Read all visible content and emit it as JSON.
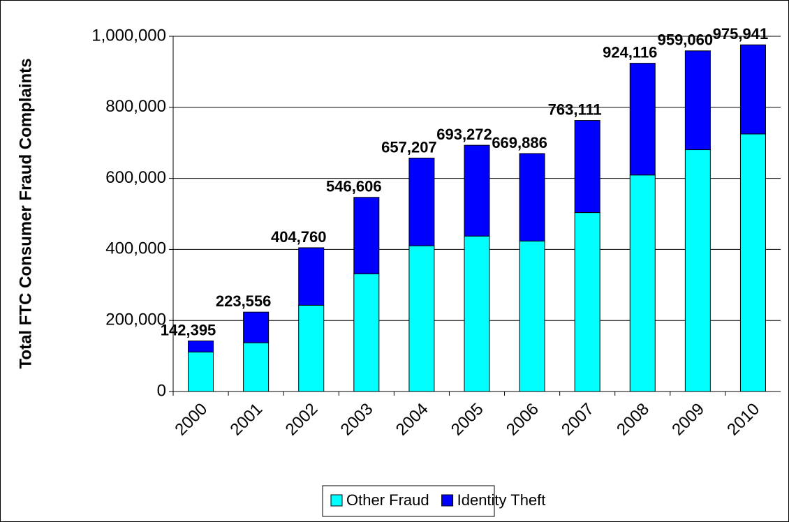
{
  "chart_data": {
    "type": "stacked-bar",
    "y_label": "Total FTC Consumer Fraud Complaints",
    "categories": [
      "2000",
      "2001",
      "2002",
      "2003",
      "2004",
      "2005",
      "2006",
      "2007",
      "2008",
      "2009",
      "2010"
    ],
    "series": [
      {
        "name": "Other Fraud",
        "color": "#00ffff",
        "values": [
          111278,
          137306,
          242783,
          331366,
          410298,
          437585,
          423672,
          503797,
          609529,
          680700,
          725087
        ]
      },
      {
        "name": "Identity Theft",
        "color": "#0000ff",
        "values": [
          31117,
          86250,
          161977,
          215240,
          246909,
          255687,
          246214,
          259314,
          314587,
          278360,
          250854
        ]
      }
    ],
    "totals": [
      {
        "value": 142395,
        "label": "142,395"
      },
      {
        "value": 223556,
        "label": "223,556"
      },
      {
        "value": 404760,
        "label": "404,760"
      },
      {
        "value": 546606,
        "label": "546,606"
      },
      {
        "value": 657207,
        "label": "657,207"
      },
      {
        "value": 693272,
        "label": "693,272"
      },
      {
        "value": 669886,
        "label": "669,886"
      },
      {
        "value": 763111,
        "label": "763,111"
      },
      {
        "value": 924116,
        "label": "924,116"
      },
      {
        "value": 959060,
        "label": "959,060"
      },
      {
        "value": 975941,
        "label": "975,941"
      }
    ],
    "ylim": [
      0,
      1000000
    ],
    "yticks": [
      0,
      {
        "value": 200000,
        "label": "200,000"
      },
      {
        "value": 400000,
        "label": "400,000"
      },
      {
        "value": 600000,
        "label": "600,000"
      },
      {
        "value": 800000,
        "label": "800,000"
      },
      {
        "value": 1000000,
        "label": "1,000,000"
      }
    ],
    "grid": true,
    "legend": "bottom"
  }
}
